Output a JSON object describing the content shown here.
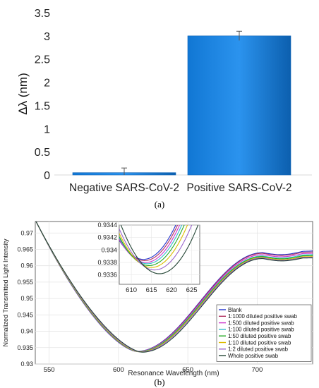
{
  "panel_a": {
    "caption": "(a)",
    "chart_data": {
      "type": "bar",
      "ylabel": "Δλ (nm)",
      "categories": [
        "Negative SARS-CoV-2",
        "Positive SARS-CoV-2"
      ],
      "values": [
        0.05,
        3.0
      ],
      "errors": [
        0.1,
        0.1
      ],
      "ylim": [
        0,
        3.5
      ],
      "yticks": [
        "0",
        "0.5",
        "1",
        "1.5",
        "2",
        "2.5",
        "3",
        "3.5"
      ],
      "bar_color": "#1177d4",
      "grid": false
    }
  },
  "panel_b": {
    "caption": "(b)",
    "chart_data": {
      "type": "line",
      "xlabel": "Resonance Wavelength (nm)",
      "ylabel": "Normalized Transmitted Light Intensity",
      "xlim": [
        540,
        740
      ],
      "ylim": [
        0.93,
        0.9735
      ],
      "xticks": [
        "550",
        "600",
        "650",
        "700"
      ],
      "yticks": [
        "0.93",
        "0.935",
        "0.94",
        "0.945",
        "0.95",
        "0.955",
        "0.96",
        "0.965",
        "0.97"
      ],
      "grid": true,
      "legend_position": "bottom-right",
      "series": [
        {
          "name": "Blank",
          "color": "#2233cc",
          "min_x": 613.0,
          "min_y": 0.93385,
          "peak_y": 0.964,
          "end_y": 0.9645
        },
        {
          "name": "1:1000 diluted positive swab",
          "color": "#b03060",
          "min_x": 613.3,
          "min_y": 0.93383,
          "peak_y": 0.9638,
          "end_y": 0.9642
        },
        {
          "name": "1:500 diluted positive swab",
          "color": "#cc33cc",
          "min_x": 613.6,
          "min_y": 0.9338,
          "peak_y": 0.9634,
          "end_y": 0.9638
        },
        {
          "name": "1:100 diluted positive swab",
          "color": "#33bbcc",
          "min_x": 614.0,
          "min_y": 0.93378,
          "peak_y": 0.963,
          "end_y": 0.9634
        },
        {
          "name": "1:50 diluted positive swab",
          "color": "#22aa22",
          "min_x": 614.4,
          "min_y": 0.93375,
          "peak_y": 0.9628,
          "end_y": 0.9631
        },
        {
          "name": "1:10 diluted positive swab",
          "color": "#ddbb00",
          "min_x": 615.0,
          "min_y": 0.93372,
          "peak_y": 0.9626,
          "end_y": 0.9628
        },
        {
          "name": "1:2 diluted positive swab",
          "color": "#9966cc",
          "min_x": 615.8,
          "min_y": 0.93368,
          "peak_y": 0.9624,
          "end_y": 0.9626
        },
        {
          "name": "Whole positive swab",
          "color": "#224433",
          "min_x": 617.0,
          "min_y": 0.93362,
          "peak_y": 0.9622,
          "end_y": 0.9624
        }
      ],
      "inset": {
        "xlim": [
          607,
          627
        ],
        "ylim": [
          0.93345,
          0.9344
        ],
        "xticks": [
          "610",
          "615",
          "620",
          "625"
        ],
        "yticks": [
          "0.9336",
          "0.9338",
          "0.934",
          "0.9342",
          "0.9344"
        ]
      }
    }
  }
}
